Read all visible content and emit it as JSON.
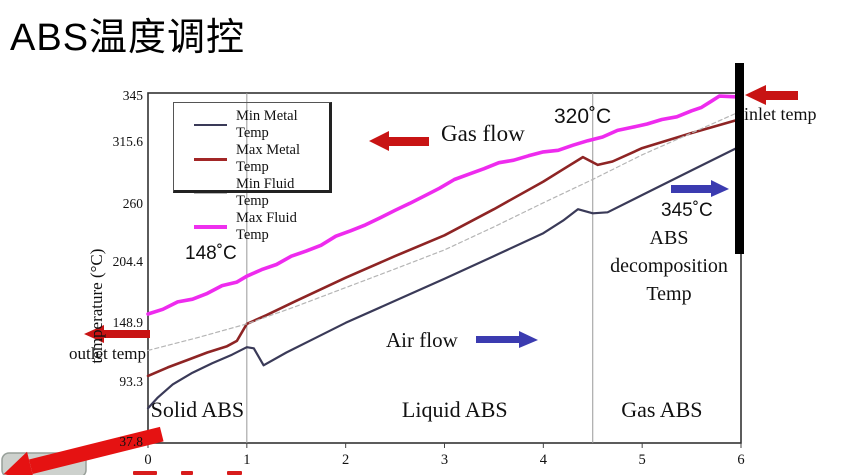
{
  "slide": {
    "title": "ABS温度调控"
  },
  "chart_data": {
    "type": "line",
    "title": "",
    "xlabel": "",
    "ylabel": "temperature (°C)",
    "xlim": [
      0,
      6
    ],
    "ylim": [
      37.8,
      345
    ],
    "xticks": [
      0,
      1,
      2,
      3,
      4,
      5,
      6
    ],
    "yticks": [
      37.8,
      93.3,
      148.9,
      204.4,
      260,
      315.6,
      345
    ],
    "grid": "vertical region-boundary lines only",
    "legend_position": "top-left-inside",
    "legend": [
      {
        "label": "Min Metal Temp",
        "color": "#3a3a58",
        "thickness": 2
      },
      {
        "label": "Max Metal Temp",
        "color": "#a22626",
        "thickness": 3
      },
      {
        "label": "Min Fluid Temp",
        "color": "#b5b5b5",
        "thickness": 1
      },
      {
        "label": "Max Fluid Temp",
        "color": "#ee30ee",
        "thickness": 4
      }
    ],
    "series": [
      {
        "name": "Min Metal Temp",
        "color": "#3a3a58",
        "width": 2.2,
        "dash": "",
        "points": [
          [
            0,
            70
          ],
          [
            0.1,
            80
          ],
          [
            0.25,
            92
          ],
          [
            0.45,
            103
          ],
          [
            0.65,
            112
          ],
          [
            0.85,
            120
          ],
          [
            1.0,
            127
          ],
          [
            1.07,
            126
          ],
          [
            1.17,
            110
          ],
          [
            1.4,
            122
          ],
          [
            1.7,
            136
          ],
          [
            2,
            150
          ],
          [
            2.5,
            170
          ],
          [
            3,
            190
          ],
          [
            3.5,
            211
          ],
          [
            4,
            233
          ],
          [
            4.2,
            245
          ],
          [
            4.35,
            256
          ],
          [
            4.5,
            252
          ],
          [
            4.65,
            253
          ],
          [
            5,
            269
          ],
          [
            5.5,
            291
          ],
          [
            6,
            313
          ]
        ]
      },
      {
        "name": "Max Metal Temp",
        "color": "#8e2424",
        "width": 2.6,
        "dash": "",
        "points": [
          [
            0,
            100
          ],
          [
            0.2,
            108
          ],
          [
            0.4,
            115
          ],
          [
            0.6,
            122
          ],
          [
            0.8,
            128
          ],
          [
            0.9,
            133
          ],
          [
            1.0,
            149
          ],
          [
            1.2,
            157
          ],
          [
            1.5,
            170
          ],
          [
            2,
            191
          ],
          [
            2.5,
            211
          ],
          [
            3,
            231
          ],
          [
            3.5,
            256
          ],
          [
            4,
            281
          ],
          [
            4.2,
            292
          ],
          [
            4.4,
            303
          ],
          [
            4.55,
            296
          ],
          [
            4.7,
            299
          ],
          [
            5,
            311
          ],
          [
            5.5,
            322
          ],
          [
            6,
            331
          ]
        ]
      },
      {
        "name": "Min Fluid Temp",
        "color": "#b5b5b5",
        "width": 1.2,
        "dash": "4 3",
        "points": [
          [
            0,
            124
          ],
          [
            0.5,
            136
          ],
          [
            1,
            149
          ],
          [
            1.5,
            165
          ],
          [
            2,
            182
          ],
          [
            2.5,
            199
          ],
          [
            3,
            217
          ],
          [
            3.5,
            239
          ],
          [
            4,
            262
          ],
          [
            4.5,
            283
          ],
          [
            5,
            305
          ],
          [
            5.5,
            322
          ],
          [
            6,
            336
          ]
        ]
      },
      {
        "name": "Max Fluid Temp",
        "color": "#ee2bee",
        "width": 3.6,
        "dash": "",
        "jitter": true,
        "points": [
          [
            0,
            158
          ],
          [
            0.15,
            163
          ],
          [
            0.3,
            168
          ],
          [
            0.45,
            172
          ],
          [
            0.6,
            177
          ],
          [
            0.75,
            183
          ],
          [
            0.9,
            188
          ],
          [
            1.0,
            192
          ],
          [
            1.15,
            198
          ],
          [
            1.3,
            204
          ],
          [
            1.45,
            210
          ],
          [
            1.6,
            216
          ],
          [
            1.75,
            222
          ],
          [
            1.9,
            229
          ],
          [
            2.05,
            236
          ],
          [
            2.2,
            241
          ],
          [
            2.35,
            247
          ],
          [
            2.5,
            256
          ],
          [
            2.65,
            261
          ],
          [
            2.8,
            268
          ],
          [
            2.95,
            276
          ],
          [
            3.1,
            282
          ],
          [
            3.25,
            288
          ],
          [
            3.4,
            293
          ],
          [
            3.55,
            297
          ],
          [
            3.7,
            301
          ],
          [
            3.85,
            304
          ],
          [
            4.0,
            307
          ],
          [
            4.15,
            310
          ],
          [
            4.3,
            313
          ],
          [
            4.45,
            317
          ],
          [
            4.6,
            320
          ],
          [
            4.75,
            323
          ],
          [
            4.9,
            326
          ],
          [
            5.05,
            328
          ],
          [
            5.2,
            330
          ],
          [
            5.35,
            333
          ],
          [
            5.5,
            336
          ],
          [
            5.6,
            338
          ],
          [
            5.7,
            343
          ],
          [
            5.78,
            345
          ],
          [
            6,
            345
          ]
        ]
      }
    ],
    "region_boundaries_x": [
      1,
      4.5
    ],
    "regions": [
      {
        "label": "Solid ABS"
      },
      {
        "label": "Liquid ABS"
      },
      {
        "label": "Gas ABS"
      }
    ]
  },
  "annotations": {
    "gas_flow": "Gas flow",
    "air_flow": "Air flow",
    "temp_148": "148˚C",
    "temp_320": "320˚C",
    "temp_345": "345˚C",
    "abs_decomposition": "ABS decomposition Temp",
    "inlet_temp": "inlet temp",
    "outlet_temp": "outlet temp"
  },
  "colors": {
    "red_arrow": "#c81414",
    "blue_arrow": "#3b3bb0",
    "boundary_line": "#000000",
    "region_line": "#999999",
    "callout_arrow": "#e51212",
    "corner_shape": "#cdd1cd"
  }
}
